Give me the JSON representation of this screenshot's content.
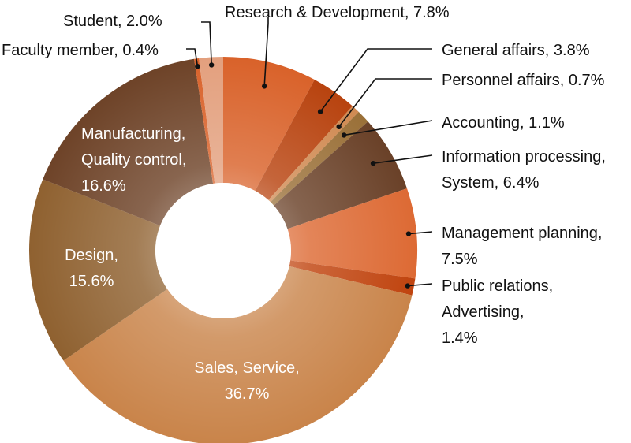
{
  "chart_data": {
    "type": "pie",
    "variant": "donut",
    "legend": "none",
    "slices": [
      {
        "key": "rd",
        "name": "Research & Development",
        "value": 7.8,
        "color": "#d9622a",
        "lines": [
          "Research & Development, 7.8%"
        ]
      },
      {
        "key": "ga",
        "name": "General affairs",
        "value": 3.8,
        "color": "#b8430f",
        "lines": [
          "General affairs, 3.8%"
        ]
      },
      {
        "key": "pa",
        "name": "Personnel affairs",
        "value": 0.7,
        "color": "#d08a52",
        "lines": [
          "Personnel affairs, 0.7%"
        ]
      },
      {
        "key": "acc",
        "name": "Accounting",
        "value": 1.1,
        "color": "#9a7038",
        "lines": [
          "Accounting, 1.1%"
        ]
      },
      {
        "key": "ip",
        "name": "Information processing, System",
        "value": 6.4,
        "color": "#6a4128",
        "lines": [
          "Information processing,",
          "System, 6.4%"
        ]
      },
      {
        "key": "mp",
        "name": "Management planning",
        "value": 7.5,
        "color": "#dd6a34",
        "lines": [
          "Management planning,",
          "7.5%"
        ]
      },
      {
        "key": "pr",
        "name": "Public relations, Advertising",
        "value": 1.4,
        "color": "#c0440f",
        "lines": [
          "Public relations,",
          "Advertising,",
          "1.4%"
        ]
      },
      {
        "key": "ss",
        "name": "Sales, Service",
        "value": 36.7,
        "color": "#c9844a",
        "lines": [
          "Sales, Service,",
          "36.7%"
        ]
      },
      {
        "key": "de",
        "name": "Design",
        "value": 15.6,
        "color": "#8f6130",
        "lines": [
          "Design,",
          "15.6%"
        ]
      },
      {
        "key": "mq",
        "name": "Manufacturing, Quality control",
        "value": 16.6,
        "color": "#6e4328",
        "lines": [
          "Manufacturing,",
          "Quality control,",
          "16.6%"
        ]
      },
      {
        "key": "fm",
        "name": "Faculty member",
        "value": 0.4,
        "color": "#d9622a",
        "lines": [
          "Faculty member, 0.4%"
        ]
      },
      {
        "key": "st",
        "name": "Student",
        "value": 2.0,
        "color": "#e3a07e",
        "lines": [
          "Student, 2.0%"
        ]
      }
    ]
  }
}
